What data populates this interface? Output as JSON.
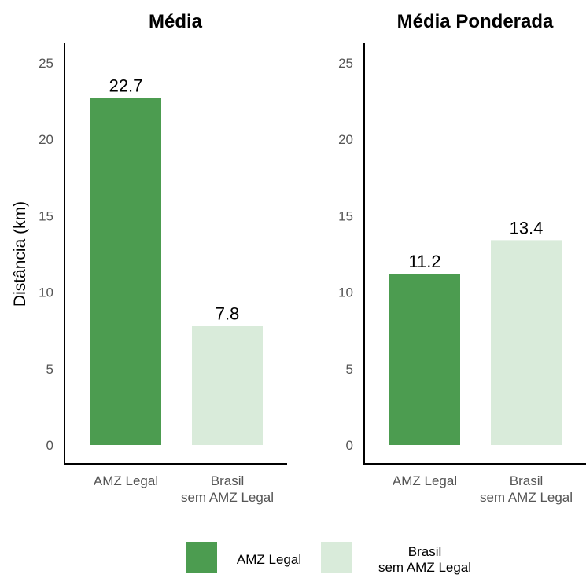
{
  "chart_data": [
    {
      "type": "bar",
      "title": "Média",
      "ylabel": "Distância (km)",
      "ylim": [
        0,
        26
      ],
      "yticks": [
        0,
        5,
        10,
        15,
        20,
        25
      ],
      "categories": [
        [
          "AMZ Legal"
        ],
        [
          "Brasil",
          "sem AMZ Legal"
        ]
      ],
      "values": [
        22.7,
        7.8
      ],
      "data_labels": [
        "22.7",
        "7.8"
      ],
      "colors": [
        "#4c9c50",
        "#d9ebda"
      ]
    },
    {
      "type": "bar",
      "title": "Média Ponderada",
      "ylabel": "",
      "ylim": [
        0,
        26
      ],
      "yticks": [
        0,
        5,
        10,
        15,
        20,
        25
      ],
      "categories": [
        [
          "AMZ Legal"
        ],
        [
          "Brasil",
          "sem AMZ Legal"
        ]
      ],
      "values": [
        11.2,
        13.4
      ],
      "data_labels": [
        "11.2",
        "13.4"
      ],
      "colors": [
        "#4c9c50",
        "#d9ebda"
      ]
    }
  ],
  "legend": {
    "position": "bottom",
    "items": [
      {
        "lines": [
          "AMZ Legal"
        ],
        "color": "#4c9c50"
      },
      {
        "lines": [
          "Brasil",
          "sem AMZ Legal"
        ],
        "color": "#d9ebda"
      }
    ]
  }
}
